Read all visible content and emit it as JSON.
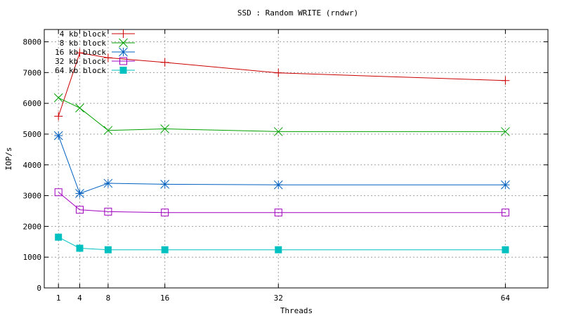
{
  "chart_data": {
    "type": "line",
    "title": "SSD : Random WRITE (rndwr)",
    "xlabel": "Threads",
    "ylabel": "IOP/s",
    "x": [
      1,
      4,
      8,
      16,
      32,
      64
    ],
    "xticks": [
      1,
      4,
      8,
      16,
      32,
      64
    ],
    "yticks": [
      0,
      1000,
      2000,
      3000,
      4000,
      5000,
      6000,
      7000,
      8000
    ],
    "xlim": [
      -1,
      70
    ],
    "ylim": [
      0,
      8400
    ],
    "grid": true,
    "legend_position": "top-left",
    "series": [
      {
        "name": "4 kb block",
        "color": "#cc0000",
        "marker": "plus",
        "values": [
          5580,
          7640,
          7480,
          7330,
          6990,
          6740
        ]
      },
      {
        "name": "8 kb block",
        "color": "#00a000",
        "marker": "cross",
        "values": [
          6180,
          5850,
          5120,
          5170,
          5080,
          5080
        ]
      },
      {
        "name": "16 kb block",
        "color": "#0060c0",
        "marker": "star",
        "values": [
          4950,
          3070,
          3400,
          3370,
          3350,
          3350
        ]
      },
      {
        "name": "32 kb block",
        "color": "#a000c0",
        "marker": "square-open",
        "values": [
          3110,
          2540,
          2480,
          2450,
          2450,
          2450
        ]
      },
      {
        "name": "64 kb block",
        "color": "#00c0c0",
        "marker": "square-filled",
        "values": [
          1650,
          1290,
          1240,
          1240,
          1240,
          1240
        ]
      }
    ]
  }
}
